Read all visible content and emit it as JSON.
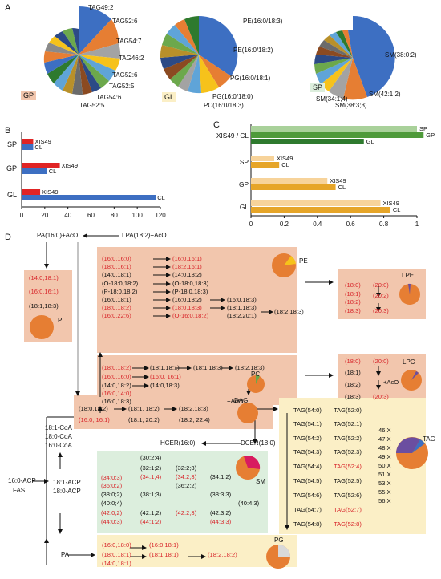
{
  "panels": {
    "a": "A",
    "b": "B",
    "c": "C",
    "d": "D"
  },
  "colors": {
    "blue": "#3d6fc2",
    "orange": "#e67e33",
    "gray": "#a3a3a3",
    "yellow": "#f6c21b",
    "lightblue": "#5fa4d8",
    "green": "#6ca84c",
    "darkblue": "#2c4a86",
    "brown": "#8b4a21",
    "red": "#e03a32",
    "salmon": "#f2c6ad",
    "cream": "#fbefc6",
    "mint": "#dceedd",
    "blush": "#f3d6cc"
  },
  "panelA": {
    "gp": {
      "tag": "GP",
      "labels": [
        "TAG49:2",
        "TAG52:6",
        "TAG54:7",
        "TAG46:2",
        "TAG52:6",
        "TAG52:5",
        "TAG54:6",
        "TAG52:5"
      ]
    },
    "gl": {
      "tag": "GL",
      "labels": [
        "PE(16:0/18:3)",
        "PE(16:0/18:2)",
        "PG(16:0/18:1)",
        "PG(16:0/18:0)",
        "PC(16:0/18:3)"
      ]
    },
    "sp": {
      "tag": "SP",
      "labels": [
        "SM(38:0:2)",
        "SM(42:1;2)",
        "SM(38:3;3)",
        "SM(34:1;4)"
      ]
    }
  },
  "chart_data": [
    {
      "type": "bar",
      "categories": [
        "SP",
        "GP",
        "GL"
      ],
      "series": [
        {
          "name": "XIS49",
          "values": [
            10,
            33,
            16
          ]
        },
        {
          "name": "CL",
          "values": [
            10,
            22,
            116
          ]
        }
      ],
      "xlim": [
        0,
        120
      ],
      "xticks": [
        "0",
        "20",
        "40",
        "60",
        "80",
        "100",
        "120"
      ]
    },
    {
      "type": "bar",
      "categories": [
        "XIS49 / CL",
        "SP",
        "GP",
        "GL"
      ],
      "groups": [
        {
          "label": "XIS49 / CL",
          "bars": [
            {
              "name": "SP",
              "value": 1.0
            },
            {
              "name": "GP",
              "value": 1.04
            },
            {
              "name": "GL",
              "value": 0.68
            }
          ]
        },
        {
          "label": "SP",
          "bars": [
            {
              "name": "XIS49",
              "value": 0.14
            },
            {
              "name": "CL",
              "value": 0.17
            }
          ]
        },
        {
          "label": "GP",
          "bars": [
            {
              "name": "XIS49",
              "value": 0.46
            },
            {
              "name": "CL",
              "value": 0.51
            }
          ]
        },
        {
          "label": "GL",
          "bars": [
            {
              "name": "XIS49",
              "value": 0.78
            },
            {
              "name": "CL",
              "value": 0.84
            }
          ]
        }
      ],
      "xlim": [
        0,
        1.0
      ],
      "xticks": [
        "0",
        "0.2",
        "0.4",
        "0.6",
        "0.8",
        "1"
      ]
    }
  ],
  "panelD": {
    "pa_top": "PA(16:0)+AcO",
    "lpa": "LPA(18:2)+AcO",
    "pi_list": [
      {
        "t": "(14:0,18:1)",
        "r": true
      },
      {
        "t": "(16:0,16:1)",
        "r": true
      },
      {
        "t": "(18:1,18:3)",
        "r": false
      }
    ],
    "pi_label": "PI",
    "pe_col1": [
      {
        "t": "(16:0,16:0)",
        "r": true
      },
      {
        "t": "(18:0,16:1)",
        "r": true
      },
      {
        "t": "(14:0,18:1)",
        "r": false
      },
      {
        "t": "(O-18:0,18:2)",
        "r": false
      },
      {
        "t": "(P-18:0,18:2)",
        "r": false
      },
      {
        "t": "(16:0,18:1)",
        "r": false
      },
      {
        "t": "(18:0,18:2)",
        "r": true
      },
      {
        "t": "(16:0,22:6)",
        "r": true
      }
    ],
    "pe_col2": [
      {
        "t": "(16:0,16:1)",
        "r": true
      },
      {
        "t": "(18:2,16:1)",
        "r": true
      },
      {
        "t": "(14:0,18:2)",
        "r": false
      },
      {
        "t": "(O-18:0,18:3)",
        "r": false
      },
      {
        "t": "(P-18:0,18:3)",
        "r": false
      },
      {
        "t": "(16:0,18:2)",
        "r": false
      },
      {
        "t": "(18:0,18:3)",
        "r": true
      },
      {
        "t": "(O-16:0,18:2)",
        "r": true
      }
    ],
    "pe_col3": [
      {
        "t": "(16:0,18:3)",
        "r": false
      },
      {
        "t": "(18:1,18:3)",
        "r": false
      },
      {
        "t": "(18:2,20:1)",
        "r": false
      }
    ],
    "pe_col4": "(18:2,18:3)",
    "pe_label": "PE",
    "lpe_list": [
      {
        "t": "(18:0)",
        "r": true
      },
      {
        "t": "(18:1)",
        "r": true
      },
      {
        "t": "(18:2)",
        "r": true
      },
      {
        "t": "(18:3)",
        "r": true
      }
    ],
    "lpe_list2": [
      {
        "t": "(20:0)",
        "r": true
      },
      {
        "t": "(20:2)",
        "r": true
      },
      {
        "t": "(20:3)",
        "r": true
      }
    ],
    "lpe_label": "LPE",
    "pc_col1": [
      {
        "t": "(18:0,18:2)",
        "r": true
      },
      {
        "t": "(16:0,16:0)",
        "r": true
      },
      {
        "t": "(14:0,18:2)",
        "r": false
      },
      {
        "t": "(16:0,14:0)",
        "r": true
      },
      {
        "t": "(16:0,18:3)",
        "r": false
      }
    ],
    "pc_col2": [
      {
        "t": "(18:1,18:1)",
        "r": false
      },
      {
        "t": "(16:0, 16:1)",
        "r": true
      },
      {
        "t": "(14:0,18:3)",
        "r": false
      }
    ],
    "pc_col3": "(18:1,18:3)",
    "pc_col4": "(18:2,18:3)",
    "pc_label": "PC",
    "lpc_list": [
      {
        "t": "(18:0)",
        "r": true
      },
      {
        "t": "(18:1)",
        "r": false
      },
      {
        "t": "(18:2)",
        "r": false
      },
      {
        "t": "(18:3)",
        "r": false
      }
    ],
    "lpc_list2": [
      {
        "t": "(20:0)",
        "r": true
      },
      {
        "t": "(20:3)",
        "r": true
      }
    ],
    "lpc_aco": "+AcO",
    "lpc_label": "LPC",
    "aco": "+AcO",
    "dag": {
      "c1": [
        {
          "t": "(18:0,18:2)",
          "r": false
        },
        {
          "t": "(16:0, 16:1)",
          "r": true
        }
      ],
      "c2": [
        "(18:1, 18:2)",
        "(18:1, 20:2)"
      ],
      "c3": [
        "(18:2,18:3)",
        "(18:2, 22:4)"
      ],
      "label": "DAG"
    },
    "coa": [
      "18:1-CoA",
      "18:0-CoA",
      "16:0-CoA"
    ],
    "acp": {
      "left": [
        "16:0-ACP",
        "FAS"
      ],
      "mid": [
        "18:1-ACP",
        "18:0-ACP"
      ]
    },
    "pa_bottom": "PA",
    "hcer": "HCER(16:0)",
    "dcer": "DCER(18:0)",
    "sm": {
      "c1": [
        {
          "t": "(34:0;3)",
          "r": true
        },
        {
          "t": "(36:0;2)",
          "r": true
        },
        {
          "t": "(38:0;2)",
          "r": false
        },
        {
          "t": "(40:0;4)",
          "r": false
        },
        {
          "t": "(42:0;2)",
          "r": true
        },
        {
          "t": "(44:0;3)",
          "r": true
        }
      ],
      "c2": [
        {
          "t": "(30:2;4)",
          "r": false
        },
        {
          "t": "(32:1;2)",
          "r": false
        },
        {
          "t": "(34:1;4)",
          "r": true
        },
        {
          "t": "(38:1;3)",
          "r": false
        },
        {
          "t": "(42:1;2)",
          "r": false
        },
        {
          "t": "(44:1;2)",
          "r": true
        }
      ],
      "c3": [
        {
          "t": "(32:2;3)",
          "r": false
        },
        {
          "t": "(34:2;3)",
          "r": true
        },
        {
          "t": "(36:2;2)",
          "r": false
        },
        {
          "t": "(42:2;3)",
          "r": true
        }
      ],
      "c4": [
        {
          "t": "(34:1;2)",
          "r": false
        },
        {
          "t": "(38:3;3)",
          "r": false
        },
        {
          "t": "(40:4;3)",
          "r": false
        },
        {
          "t": "(42:3;2)",
          "r": false
        },
        {
          "t": "(44:3;3)",
          "r": true
        }
      ],
      "label": "SM"
    },
    "tag": {
      "c1": [
        "TAG(54:0)",
        "TAG(54:1)",
        "TAG(54:2)",
        "TAG(54:3)",
        "TAG(54:4)",
        "TAG(54:5)",
        "TAG(54:6)",
        "TAG(54:7)",
        "TAG(54:8)"
      ],
      "c2": [
        {
          "t": "TAG(52:0)",
          "r": false
        },
        {
          "t": "TAG(52:1)",
          "r": false
        },
        {
          "t": "TAG(52:2)",
          "r": false
        },
        {
          "t": "TAG(52:3)",
          "r": false
        },
        {
          "t": "TAG(52:4)",
          "r": true
        },
        {
          "t": "TAG(52:5)",
          "r": false
        },
        {
          "t": "TAG(52:6)",
          "r": false
        },
        {
          "t": "TAG(52:7)",
          "r": true
        },
        {
          "t": "TAG(52:8)",
          "r": true
        }
      ],
      "c3": [
        "46:X",
        "47:X",
        "48:X",
        "49:X",
        "50:X",
        "51:X",
        "53:X",
        "55:X",
        "56:X"
      ],
      "label": "TAG"
    },
    "pg": {
      "c1": [
        {
          "t": "(16:0,18:0)",
          "r": true
        },
        {
          "t": "(18:0,18:1)",
          "r": true
        },
        {
          "t": "(14:0,18:1)",
          "r": true
        }
      ],
      "c2": [
        {
          "t": "(16:0,18:1)",
          "r": true
        },
        {
          "t": "(18:1,18:1)",
          "r": true
        }
      ],
      "c3": {
        "t": "(18:2,18:2)",
        "r": true
      },
      "label": "PG"
    }
  }
}
